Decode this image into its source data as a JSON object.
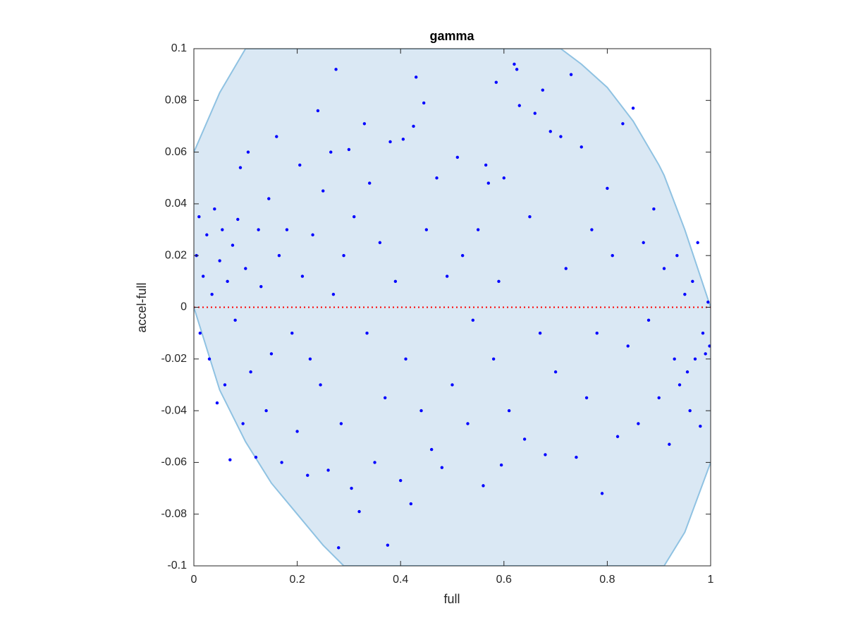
{
  "chart_data": {
    "type": "scatter",
    "title": "gamma",
    "xlabel": "full",
    "ylabel": "accel-full",
    "xlim": [
      0,
      1
    ],
    "ylim": [
      -0.1,
      0.1
    ],
    "xticks": [
      0,
      0.2,
      0.4,
      0.6,
      0.8,
      1
    ],
    "yticks": [
      -0.1,
      -0.08,
      -0.06,
      -0.04,
      -0.02,
      0,
      0.02,
      0.04,
      0.06,
      0.08,
      0.1
    ],
    "reference_line": {
      "y": 0,
      "color": "#ff0000"
    },
    "region": {
      "color": "#dae8f4",
      "edge_color": "#8fc2e2",
      "x": [
        0,
        0.05,
        0.1,
        0.15,
        0.2,
        0.25,
        0.29,
        0.4,
        0.5,
        0.6,
        0.71,
        0.75,
        0.8,
        0.85,
        0.9,
        0.91,
        0.95,
        1
      ],
      "upper": [
        0.06,
        0.083,
        0.1,
        0.1,
        0.1,
        0.1,
        0.1,
        0.1,
        0.1,
        0.1,
        0.1,
        0.094,
        0.085,
        0.072,
        0.055,
        0.051,
        0.03,
        0.0
      ],
      "lower": [
        0.0,
        -0.032,
        -0.052,
        -0.068,
        -0.08,
        -0.092,
        -0.1,
        -0.1,
        -0.1,
        -0.1,
        -0.1,
        -0.1,
        -0.1,
        -0.1,
        -0.1,
        -0.1,
        -0.087,
        -0.06
      ]
    },
    "series": [
      {
        "color": "#0000ff",
        "x": [
          0.005,
          0.01,
          0.012,
          0.018,
          0.025,
          0.03,
          0.035,
          0.04,
          0.045,
          0.05,
          0.055,
          0.06,
          0.065,
          0.07,
          0.075,
          0.08,
          0.085,
          0.09,
          0.095,
          0.1,
          0.105,
          0.11,
          0.12,
          0.125,
          0.13,
          0.14,
          0.145,
          0.15,
          0.16,
          0.165,
          0.17,
          0.18,
          0.19,
          0.2,
          0.205,
          0.21,
          0.22,
          0.225,
          0.23,
          0.24,
          0.245,
          0.25,
          0.26,
          0.265,
          0.27,
          0.275,
          0.28,
          0.285,
          0.29,
          0.3,
          0.305,
          0.31,
          0.32,
          0.33,
          0.335,
          0.34,
          0.35,
          0.36,
          0.37,
          0.375,
          0.38,
          0.39,
          0.4,
          0.405,
          0.41,
          0.42,
          0.425,
          0.43,
          0.44,
          0.445,
          0.45,
          0.46,
          0.47,
          0.48,
          0.49,
          0.5,
          0.51,
          0.52,
          0.53,
          0.54,
          0.55,
          0.56,
          0.565,
          0.57,
          0.58,
          0.585,
          0.59,
          0.595,
          0.6,
          0.61,
          0.62,
          0.625,
          0.63,
          0.64,
          0.65,
          0.66,
          0.67,
          0.675,
          0.68,
          0.69,
          0.7,
          0.71,
          0.72,
          0.73,
          0.74,
          0.75,
          0.76,
          0.77,
          0.78,
          0.79,
          0.8,
          0.81,
          0.82,
          0.83,
          0.84,
          0.85,
          0.86,
          0.87,
          0.88,
          0.89,
          0.9,
          0.91,
          0.92,
          0.93,
          0.935,
          0.94,
          0.95,
          0.955,
          0.96,
          0.965,
          0.97,
          0.975,
          0.98,
          0.985,
          0.99,
          0.995,
          0.998
        ],
        "values": [
          0.02,
          0.035,
          -0.01,
          0.012,
          0.028,
          -0.02,
          0.005,
          0.038,
          -0.037,
          0.018,
          0.03,
          -0.03,
          0.01,
          -0.059,
          0.024,
          -0.005,
          0.034,
          0.054,
          -0.045,
          0.015,
          0.06,
          -0.025,
          -0.058,
          0.03,
          0.008,
          -0.04,
          0.042,
          -0.018,
          0.066,
          0.02,
          -0.06,
          0.03,
          -0.01,
          -0.048,
          0.055,
          0.012,
          -0.065,
          -0.02,
          0.028,
          0.076,
          -0.03,
          0.045,
          -0.063,
          0.06,
          0.005,
          0.092,
          -0.093,
          -0.045,
          0.02,
          0.061,
          -0.07,
          0.035,
          -0.079,
          0.071,
          -0.01,
          0.048,
          -0.06,
          0.025,
          -0.035,
          -0.092,
          0.064,
          0.01,
          -0.067,
          0.065,
          -0.02,
          -0.076,
          0.07,
          0.089,
          -0.04,
          0.079,
          0.03,
          -0.055,
          0.05,
          -0.062,
          0.012,
          -0.03,
          0.058,
          0.02,
          -0.045,
          -0.005,
          0.03,
          -0.069,
          0.055,
          0.048,
          -0.02,
          0.087,
          0.01,
          -0.061,
          0.05,
          -0.04,
          0.094,
          0.092,
          0.078,
          -0.051,
          0.035,
          0.075,
          -0.01,
          0.084,
          -0.057,
          0.068,
          -0.025,
          0.066,
          0.015,
          0.09,
          -0.058,
          0.062,
          -0.035,
          0.03,
          -0.01,
          -0.072,
          0.046,
          0.02,
          -0.05,
          0.071,
          -0.015,
          0.077,
          -0.045,
          0.025,
          -0.005,
          0.038,
          -0.035,
          0.015,
          -0.053,
          -0.02,
          0.02,
          -0.03,
          0.005,
          -0.025,
          -0.04,
          0.01,
          -0.02,
          0.025,
          -0.046,
          -0.01,
          -0.018,
          0.002,
          -0.015
        ]
      }
    ]
  }
}
